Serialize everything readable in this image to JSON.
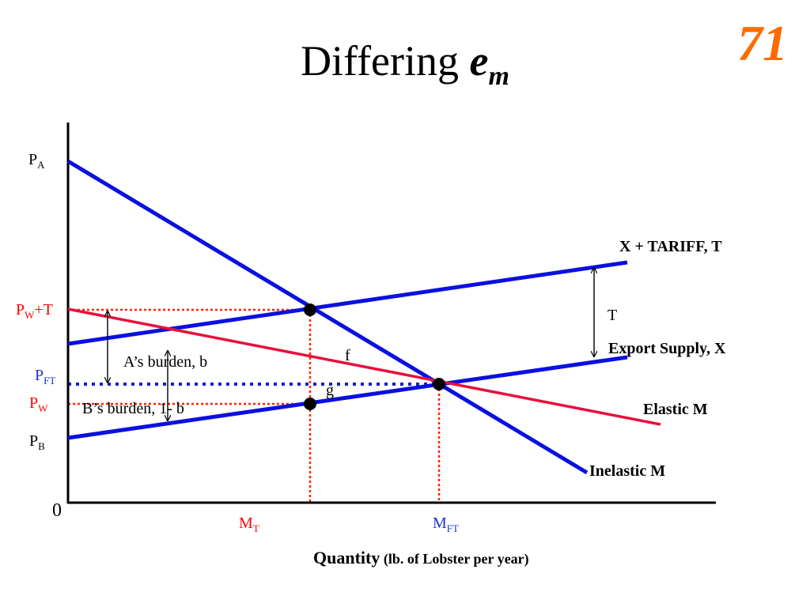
{
  "slide": {
    "title_text": "Differing ",
    "title_em": "e",
    "title_sub": "m",
    "number": "71"
  },
  "colors": {
    "blue_curves": "#0a10e0",
    "red_curve": "#e8103c",
    "dotted_red": "#ff2200",
    "dotted_blue": "#1020d0",
    "label_red": "#ff0000",
    "label_blue": "#1a33cc",
    "axis": "#000000"
  },
  "labels": {
    "pa": "P",
    "pa_sub": "A",
    "pwt": "P",
    "pwt_sub": "W",
    "pwt_suffix": "+T",
    "pft": "P",
    "pft_sub": "FT",
    "pw": "P",
    "pw_sub": "W",
    "pb": "P",
    "pb_sub": "B",
    "zero": "0",
    "mt": "M",
    "mt_sub": "T",
    "mft": "M",
    "mft_sub": "FT",
    "x_plus_tariff": "X + TARIFF, T",
    "tariff_t": "T",
    "export_supply": "Export Supply, X",
    "elastic_m": "Elastic M",
    "inelastic_m": "Inelastic M",
    "a_burden": "A’s burden, b",
    "b_burden": "B’s burden, 1- b",
    "f": "f",
    "g": "g",
    "quantity": "Quantity",
    "quantity_unit": "(lb. of Lobster per year)"
  }
}
